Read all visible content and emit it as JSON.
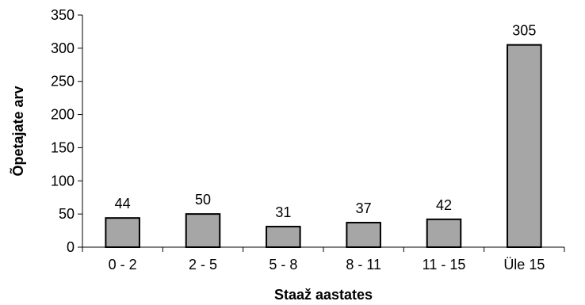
{
  "chart_data": {
    "type": "bar",
    "title": "",
    "xlabel": "Staaž aastates",
    "ylabel": "Õpetajate arv",
    "categories": [
      "0 - 2",
      "2 - 5",
      "5 - 8",
      "8 - 11",
      "11 - 15",
      "Üle 15"
    ],
    "values": [
      44,
      50,
      31,
      37,
      42,
      305
    ],
    "data_labels": [
      "44",
      "50",
      "31",
      "37",
      "42",
      "305"
    ],
    "ylim": [
      0,
      350
    ],
    "yticks": [
      0,
      50,
      100,
      150,
      200,
      250,
      300,
      350
    ],
    "grid": false,
    "legend": "none",
    "bar_fill": "#a6a6a6",
    "bar_stroke": "#000000"
  }
}
